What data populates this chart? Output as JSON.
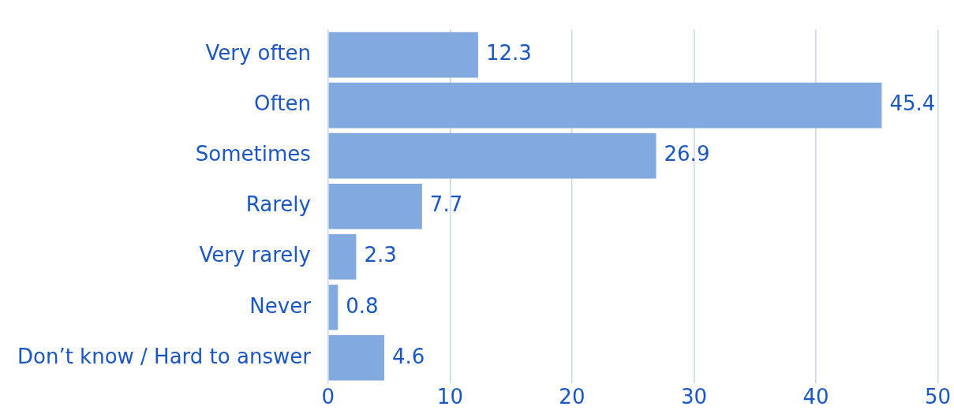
{
  "chart_data": {
    "type": "bar",
    "orientation": "horizontal",
    "categories": [
      "Very often",
      "Often",
      "Sometimes",
      "Rarely",
      "Very rarely",
      "Never",
      "Don’t know / Hard to answer"
    ],
    "values": [
      12.3,
      45.4,
      26.9,
      7.7,
      2.3,
      0.8,
      4.6
    ],
    "color": "#82aae0",
    "xlim": [
      0,
      50
    ],
    "xticks": [
      0,
      10,
      20,
      30,
      40,
      50
    ],
    "grid": "x",
    "legend": false,
    "data_labels": true
  }
}
